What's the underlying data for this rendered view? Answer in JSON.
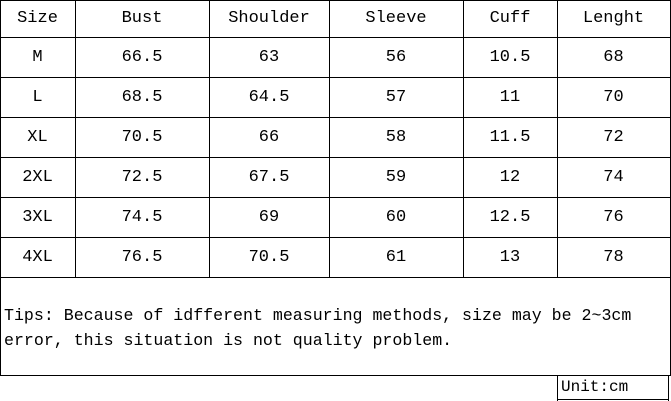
{
  "table": {
    "header": [
      "Size",
      "Bust",
      "Shoulder",
      "Sleeve",
      "Cuff",
      "Lenght"
    ],
    "rows": [
      [
        "M",
        "66.5",
        "63",
        "56",
        "10.5",
        "68"
      ],
      [
        "L",
        "68.5",
        "64.5",
        "57",
        "11",
        "70"
      ],
      [
        "XL",
        "70.5",
        "66",
        "58",
        "11.5",
        "72"
      ],
      [
        "2XL",
        "72.5",
        "67.5",
        "59",
        "12",
        "74"
      ],
      [
        "3XL",
        "74.5",
        "69",
        "60",
        "12.5",
        "76"
      ],
      [
        "4XL",
        "76.5",
        "70.5",
        "61",
        "13",
        "78"
      ]
    ]
  },
  "tips": "Tips: Because of idfferent measuring methods, size may be 2~3cm error, this situation is not quality problem.",
  "unit": "Unit:cm"
}
